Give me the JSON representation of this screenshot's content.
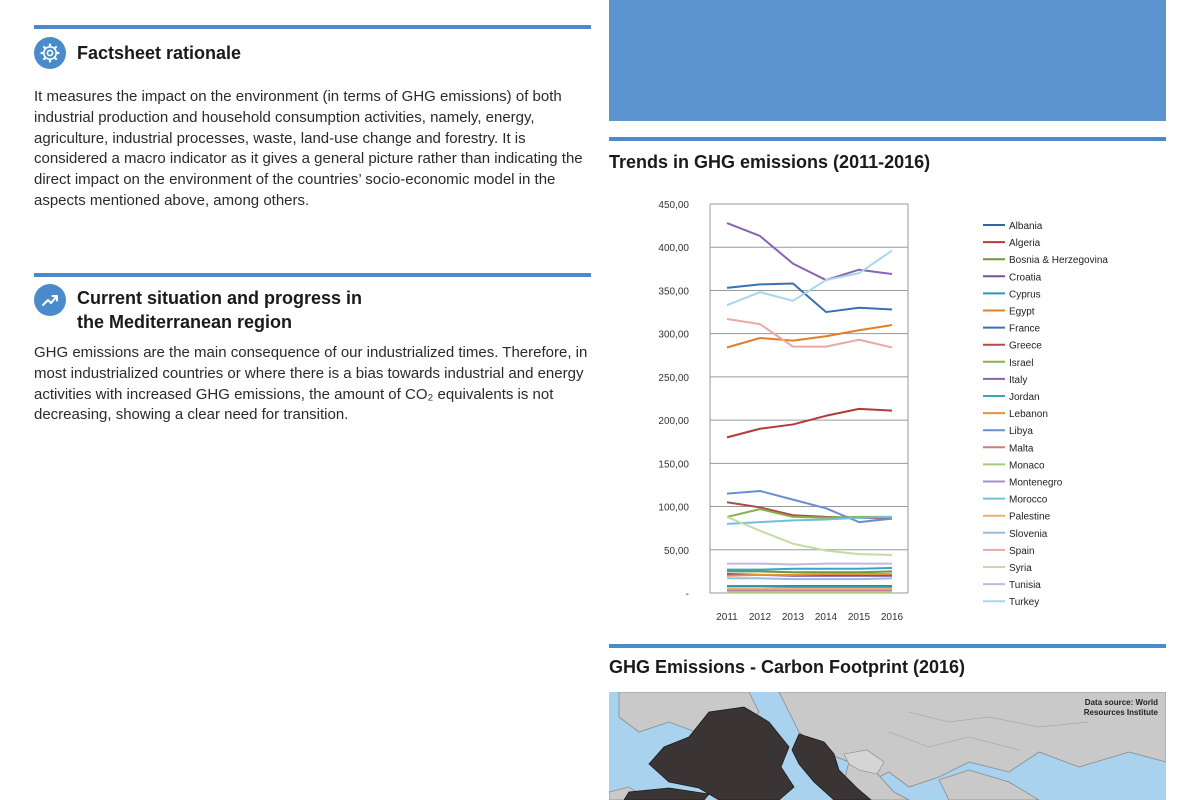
{
  "left": {
    "section1": {
      "title": "Factsheet rationale",
      "icon": "gear-icon",
      "text": "It measures the impact on the environment (in terms of GHG emissions) of both industrial production and household consumption activities, namely, energy, agriculture, industrial processes, waste, land-use change and forestry. It is considered a macro indicator as it gives a general picture rather than indicating the direct impact on the environment of the countries’ socio-economic model in the aspects mentioned above, among others."
    },
    "section2": {
      "title_line1": "Current situation and progress in",
      "title_line2": "the Mediterranean region",
      "icon": "trend-up-icon",
      "text": "GHG emissions are the main consequence of our industrialized times. Therefore, in most industrialized countries or where there is a bias towards industrial and energy activities with increased GHG emissions, the amount of CO₂ equivalents is not decreasing, showing a clear need for transition."
    }
  },
  "right": {
    "chart_title": "Trends in GHG emissions (2011-2016)",
    "map_title": "GHG Emissions - Carbon Footprint (2016)",
    "map_source": "Data source: World Resources Institute"
  },
  "colors": {
    "accent": "#4a8ccb",
    "banner": "#5b94cf"
  },
  "chart_data": {
    "type": "line",
    "x": [
      "2011",
      "2012",
      "2013",
      "2014",
      "2015",
      "2016"
    ],
    "ylim": [
      0,
      450
    ],
    "yticks": [
      "-",
      "50,00",
      "100,00",
      "150,00",
      "200,00",
      "250,00",
      "300,00",
      "350,00",
      "400,00",
      "450,00"
    ],
    "grid": true,
    "legend": "right",
    "series": [
      {
        "name": "Albania",
        "color": "#2e64a8",
        "values": [
          8,
          8,
          8,
          8,
          8,
          8
        ]
      },
      {
        "name": "Algeria",
        "color": "#b23a38",
        "values": [
          180,
          190,
          195,
          205,
          213,
          211
        ]
      },
      {
        "name": "Bosnia & Herzegovina",
        "color": "#6a9a3a",
        "values": [
          25,
          25,
          24,
          24,
          24,
          25
        ]
      },
      {
        "name": "Croatia",
        "color": "#76509e",
        "values": [
          22,
          21,
          20,
          20,
          20,
          20
        ]
      },
      {
        "name": "Cyprus",
        "color": "#2a99b4",
        "values": [
          8,
          8,
          7,
          7,
          7,
          7
        ]
      },
      {
        "name": "Egypt",
        "color": "#e07f2a",
        "values": [
          284,
          295,
          292,
          297,
          304,
          310
        ]
      },
      {
        "name": "France",
        "color": "#3b6fb2",
        "values": [
          353,
          357,
          358,
          325,
          330,
          328
        ]
      },
      {
        "name": "Greece",
        "color": "#b04b48",
        "values": [
          105,
          99,
          90,
          88,
          87,
          86
        ]
      },
      {
        "name": "Israel",
        "color": "#84b34a",
        "values": [
          88,
          97,
          88,
          87,
          88,
          88
        ]
      },
      {
        "name": "Italy",
        "color": "#8a63b3",
        "values": [
          428,
          413,
          381,
          362,
          374,
          369
        ]
      },
      {
        "name": "Jordan",
        "color": "#38a5c5",
        "values": [
          27,
          27,
          28,
          28,
          28,
          29
        ]
      },
      {
        "name": "Lebanon",
        "color": "#eb9036",
        "values": [
          20,
          21,
          21,
          22,
          22,
          22
        ]
      },
      {
        "name": "Libya",
        "color": "#6a8fd0",
        "values": [
          115,
          118,
          108,
          98,
          82,
          86
        ]
      },
      {
        "name": "Malta",
        "color": "#d57a77",
        "values": [
          3,
          3,
          3,
          3,
          3,
          3
        ]
      },
      {
        "name": "Monaco",
        "color": "#a8cc78",
        "values": [
          1,
          1,
          1,
          1,
          1,
          1
        ]
      },
      {
        "name": "Montenegro",
        "color": "#a88ccb",
        "values": [
          4,
          4,
          4,
          4,
          4,
          4
        ]
      },
      {
        "name": "Morocco",
        "color": "#6fc0da",
        "values": [
          80,
          82,
          84,
          85,
          87,
          88
        ]
      },
      {
        "name": "Palestine",
        "color": "#f3ad6c",
        "values": [
          5,
          5,
          5,
          5,
          5,
          5
        ]
      },
      {
        "name": "Slovenia",
        "color": "#9fb8df",
        "values": [
          17,
          17,
          16,
          16,
          16,
          17
        ]
      },
      {
        "name": "Spain",
        "color": "#e8a9a7",
        "values": [
          317,
          311,
          285,
          285,
          293,
          284
        ]
      },
      {
        "name": "Syria",
        "color": "#c3dca6",
        "values": [
          88,
          72,
          57,
          49,
          45,
          44
        ]
      },
      {
        "name": "Tunisia",
        "color": "#c5b7dd",
        "values": [
          34,
          34,
          33,
          34,
          34,
          34
        ]
      },
      {
        "name": "Turkey",
        "color": "#a7d8ea",
        "values": [
          333,
          348,
          338,
          362,
          370,
          396
        ]
      }
    ]
  }
}
